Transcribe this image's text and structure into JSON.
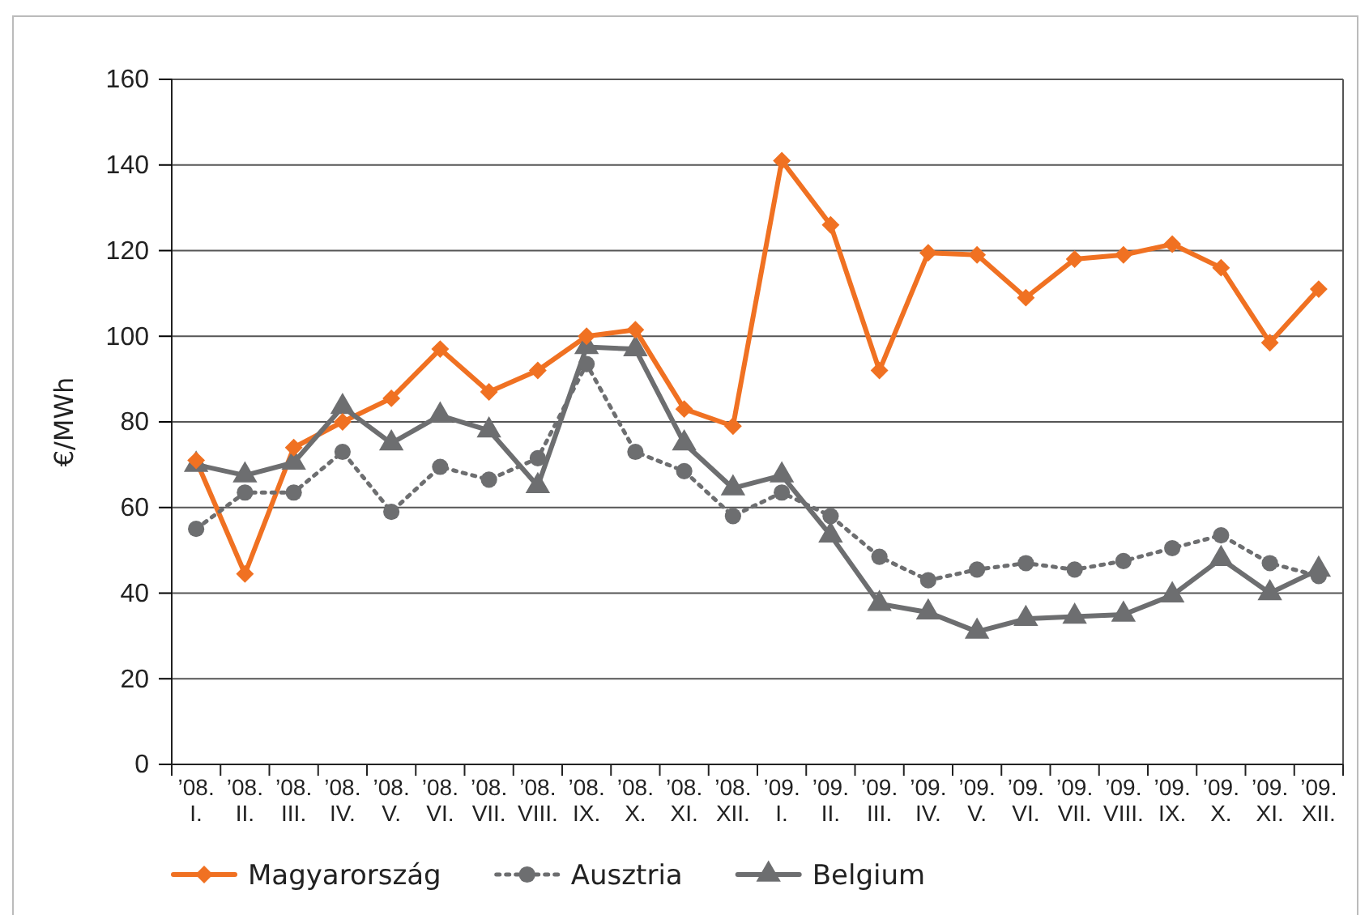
{
  "chart_data": {
    "type": "line",
    "ylabel": "€/MWh",
    "categories": [
      "’08. I.",
      "’08. II.",
      "’08. III.",
      "’08. IV.",
      "’08. V.",
      "’08. VI.",
      "’08. VII.",
      "’08. VIII.",
      "’08. IX.",
      "’08. X.",
      "’08. XI.",
      "’08. XII.",
      "’09. I.",
      "’09. II.",
      "’09. III.",
      "’09. IV.",
      "’09. V.",
      "’09. VI.",
      "’09. VII.",
      "’09. VIII.",
      "’09. IX.",
      "’09. X.",
      "’09. XI.",
      "’09. XII."
    ],
    "series": [
      {
        "name": "Magyarország",
        "color": "#f07122",
        "marker": "diamond",
        "line_style": "solid",
        "values": [
          71,
          44.5,
          74,
          80,
          85.5,
          97,
          87,
          92,
          100,
          101.5,
          83,
          79,
          141,
          126,
          92,
          119.5,
          119,
          109,
          118,
          119,
          121.5,
          116,
          98.5,
          111
        ]
      },
      {
        "name": "Ausztria",
        "color": "#6d6e70",
        "marker": "circle",
        "line_style": "dotted",
        "values": [
          55,
          63.5,
          63.5,
          73,
          59,
          69.5,
          66.5,
          71.5,
          93.5,
          73,
          68.5,
          58,
          63.5,
          58,
          48.5,
          43,
          45.5,
          47,
          45.5,
          47.5,
          50.5,
          53.5,
          47,
          44
        ]
      },
      {
        "name": "Belgium",
        "color": "#6d6e70",
        "marker": "triangle",
        "line_style": "solid",
        "values": [
          70,
          67.5,
          70.5,
          83.5,
          75,
          81.5,
          78,
          65,
          97.5,
          97,
          75,
          64.5,
          67.5,
          53.5,
          37.5,
          35.5,
          31,
          34,
          34.5,
          35,
          39.5,
          48,
          40,
          45.5
        ]
      }
    ],
    "ylim": [
      0,
      160
    ],
    "yticks": [
      0,
      20,
      40,
      60,
      80,
      100,
      120,
      140,
      160
    ],
    "grid": "y",
    "legend": "bottom"
  }
}
